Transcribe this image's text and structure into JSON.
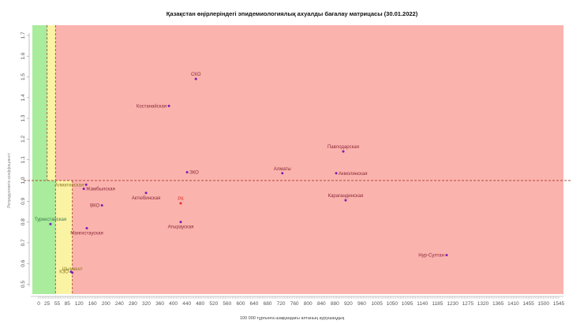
{
  "chart_data": {
    "type": "scatter",
    "title": "Қазақстан өңірлеріндегі эпидемиологиялық ахуалды бағалау матрицасы  (30.01.2022)",
    "xlabel": "100 000 тұрғынға шаққандағы аптаның аурушаңдық",
    "ylabel": "Репродуктивтік коэффициенті",
    "xlim": [
      -20,
      1560
    ],
    "ylim": [
      0.45,
      1.72
    ],
    "x_ticks": [
      0,
      25,
      55,
      85,
      120,
      160,
      200,
      240,
      280,
      320,
      360,
      400,
      440,
      480,
      520,
      560,
      600,
      640,
      680,
      720,
      760,
      800,
      840,
      880,
      920,
      960,
      1005,
      1050,
      1095,
      1140,
      1185,
      1230,
      1275,
      1320,
      1365,
      1410,
      1455,
      1500,
      1545
    ],
    "y_ticks": [
      0.5,
      0.6,
      0.7,
      0.8,
      0.9,
      1.0,
      1.1,
      1.2,
      1.3,
      1.4,
      1.5,
      1.6,
      1.7
    ],
    "grid": false,
    "reference_lines": {
      "y": 1.0,
      "x_above_1": [
        25,
        50
      ],
      "x_below_1": [
        50,
        100
      ]
    },
    "zones": {
      "green": "#a8ec9c",
      "yellow": "#fbf3a4",
      "red": "#fbb3ad",
      "line": "#b24a3a",
      "point": "#7a1fb0"
    },
    "points": [
      {
        "name": "СКО",
        "x": 467,
        "y": 1.49,
        "pos": "top",
        "color": "#8a2a3a"
      },
      {
        "name": "Костанайская",
        "x": 387,
        "y": 1.36,
        "pos": "left",
        "color": "#8a2a3a"
      },
      {
        "name": "Павлодарская",
        "x": 905,
        "y": 1.14,
        "pos": "top",
        "color": "#8a2a3a"
      },
      {
        "name": "ЗКО",
        "x": 441,
        "y": 1.04,
        "pos": "right",
        "color": "#8a2a3a"
      },
      {
        "name": "Алматы",
        "x": 724,
        "y": 1.035,
        "pos": "top",
        "color": "#8a2a3a"
      },
      {
        "name": "Акмолинская",
        "x": 884,
        "y": 1.035,
        "pos": "right",
        "color": "#8a2a3a"
      },
      {
        "name": "Алматинская",
        "x": 141,
        "y": 0.98,
        "pos": "left",
        "color": "#8a7a20"
      },
      {
        "name": "Жамбылская",
        "x": 134,
        "y": 0.96,
        "pos": "right",
        "color": "#8a2a3a"
      },
      {
        "name": "Актюбинская",
        "x": 319,
        "y": 0.94,
        "pos": "bottom",
        "color": "#8a2a3a"
      },
      {
        "name": "Карагандинская",
        "x": 912,
        "y": 0.905,
        "pos": "top",
        "color": "#8a2a3a"
      },
      {
        "name": "ВКО",
        "x": 188,
        "y": 0.88,
        "pos": "left",
        "color": "#8a2a3a"
      },
      {
        "name": "РК",
        "x": 422,
        "y": 0.89,
        "pos": "top",
        "color": "#e0302a"
      },
      {
        "name": "Атырауская",
        "x": 422,
        "y": 0.8,
        "pos": "bottom",
        "color": "#8a2a3a"
      },
      {
        "name": "Туркестанская",
        "x": 35,
        "y": 0.79,
        "pos": "top",
        "color": "#3a7a4a"
      },
      {
        "name": "Мангистауская",
        "x": 143,
        "y": 0.77,
        "pos": "bottom",
        "color": "#8a2a3a"
      },
      {
        "name": "Нур-Султан",
        "x": 1212,
        "y": 0.64,
        "pos": "left",
        "color": "#8a2a3a"
      },
      {
        "name": "Шымкент",
        "x": 100,
        "y": 0.555,
        "pos": "topright",
        "color": "#8a7a20"
      },
      {
        "name": "КЗО",
        "x": 96,
        "y": 0.56,
        "pos": "left",
        "color": "#8a7a20"
      }
    ]
  }
}
